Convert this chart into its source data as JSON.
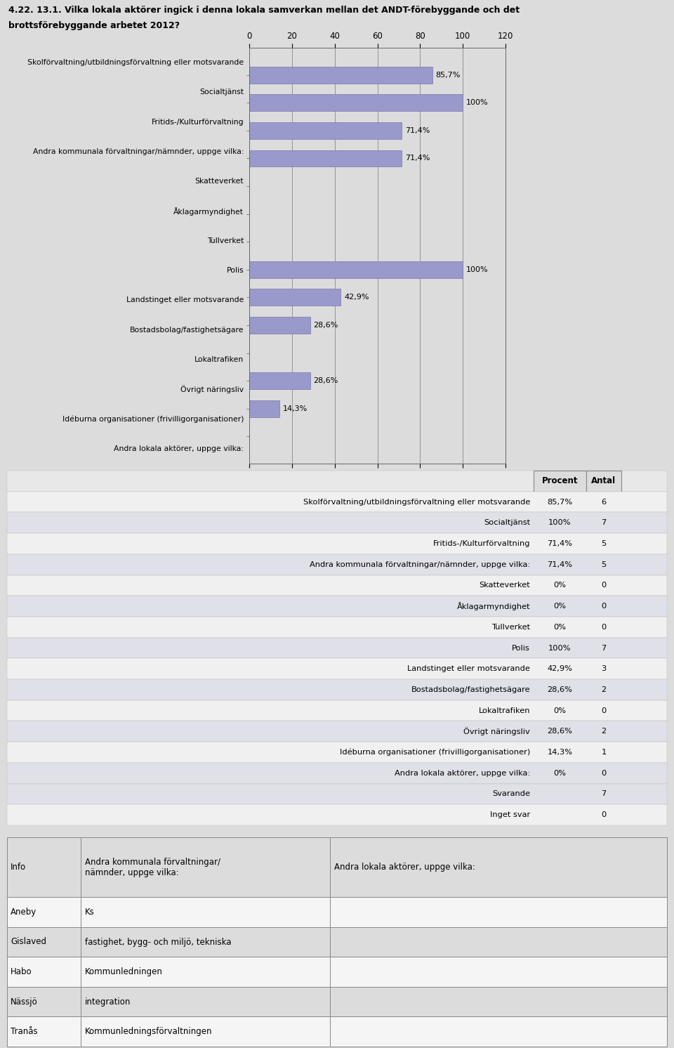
{
  "title_line1": "4.22. 13.1. Vilka lokala aktörer ingick i denna lokala samverkan mellan det ANDT-förebyggande och det",
  "title_line2": "brottsförebyggande arbetet 2012?",
  "categories": [
    "Skolförvaltning/utbildningsförvaltning eller motsvarande",
    "Socialtjänst",
    "Fritids-/Kulturförvaltning",
    "Andra kommunala förvaltningar/nämnder, uppge vilka:",
    "Skatteverket",
    "Åklagarmyndighet",
    "Tullverket",
    "Polis",
    "Landstinget eller motsvarande",
    "Bostadsbolag/fastighetsägare",
    "Lokaltrafiken",
    "Övrigt näringsliv",
    "Idéburna organisationer (frivilligorganisationer)",
    "Andra lokala aktörer, uppge vilka:"
  ],
  "values": [
    85.7,
    100.0,
    71.4,
    71.4,
    0.0,
    0.0,
    0.0,
    100.0,
    42.9,
    28.6,
    0.0,
    28.6,
    14.3,
    0.0
  ],
  "bar_labels": [
    "85,7%",
    "100%",
    "71,4%",
    "71,4%",
    "",
    "",
    "",
    "100%",
    "42,9%",
    "28,6%",
    "",
    "28,6%",
    "14,3%",
    ""
  ],
  "counts": [
    6,
    7,
    5,
    5,
    0,
    0,
    0,
    7,
    3,
    2,
    0,
    2,
    1,
    0
  ],
  "percents_display": [
    "85,7%",
    "100%",
    "71,4%",
    "71,4%",
    "0%",
    "0%",
    "0%",
    "100%",
    "42,9%",
    "28,6%",
    "0%",
    "28,6%",
    "14,3%",
    "0%"
  ],
  "bar_color": "#9999cc",
  "bar_edge_color": "#7777aa",
  "chart_bg": "#dcdcdc",
  "page_bg": "#dcdcdc",
  "xlim": [
    0,
    120
  ],
  "xticks": [
    0,
    20,
    40,
    60,
    80,
    100,
    120
  ],
  "svarande": 7,
  "inget_svar": 0,
  "info_rows": [
    [
      "Aneby",
      "Ks",
      ""
    ],
    [
      "Gislaved",
      "fastighet, bygg- och miljö, tekniska",
      ""
    ],
    [
      "Habo",
      "Kommunledningen",
      ""
    ],
    [
      "Nässjö",
      "integration",
      ""
    ],
    [
      "Tranås",
      "Kommunledningsförvaltningen",
      ""
    ]
  ],
  "info_col0_header": "Info",
  "info_col1_header": "Andra kommunala förvaltningar/\nnämnder, uppge vilka:",
  "info_col2_header": "Andra lokala aktörer, uppge vilka:",
  "tbl_row_alt1": "#f0f0f0",
  "tbl_row_alt2": "#e0e0e8",
  "white_bg": "#ffffff"
}
